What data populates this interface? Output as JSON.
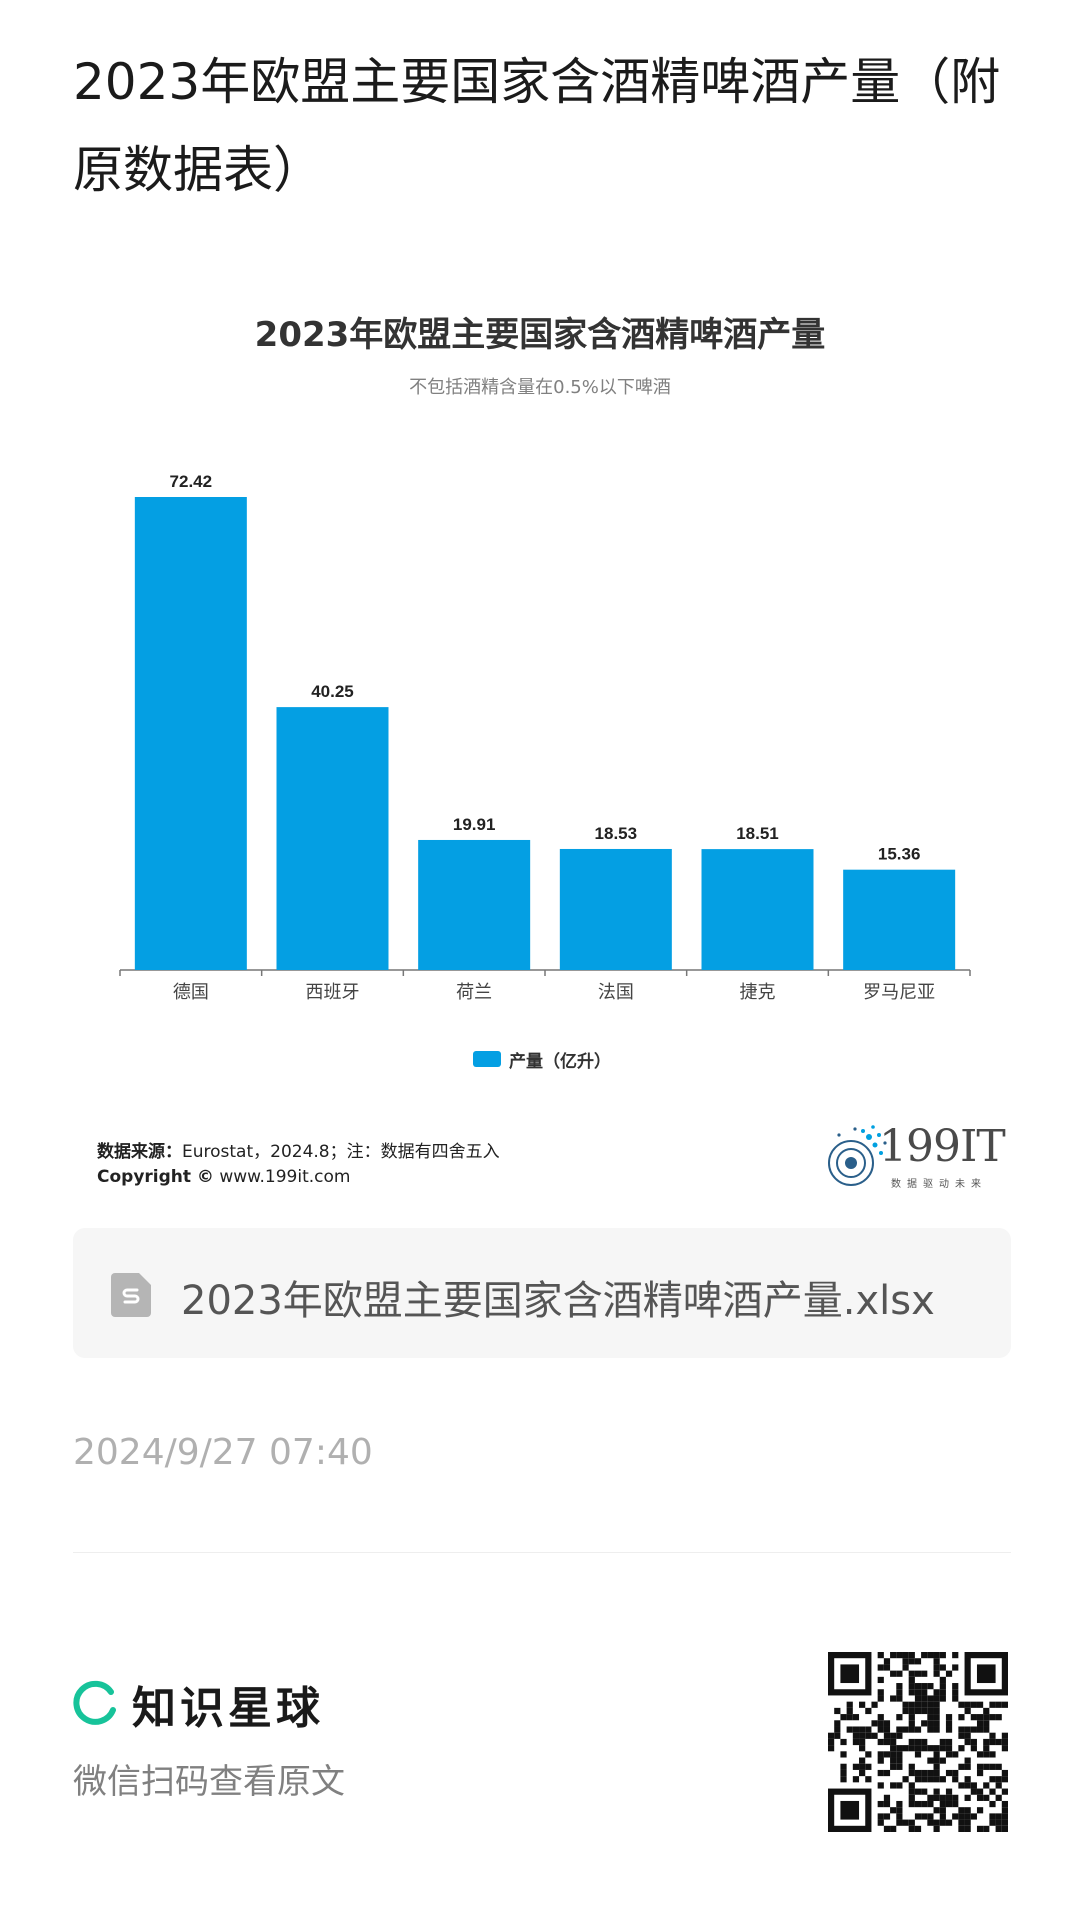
{
  "article": {
    "title": "2023年欧盟主要国家含酒精啤酒产量（附原数据表）",
    "attachment_name": "2023年欧盟主要国家含酒精啤酒产量.xlsx",
    "posted_at": "2024/9/27 07:40",
    "file_icon": "document-icon"
  },
  "chart_card": {
    "source_label": "数据来源：",
    "source_text": "Eurostat，2024.8；注：数据有四舍五入",
    "copyright_label": "Copyright ©",
    "copyright_text": "www.199it.com",
    "brand_name": "199IT",
    "brand_tagline": "数据驱动未来"
  },
  "chart_data": {
    "type": "bar",
    "title": "2023年欧盟主要国家含酒精啤酒产量",
    "subtitle": "不包括酒精含量在0.5%以下啤酒",
    "categories": [
      "德国",
      "西班牙",
      "荷兰",
      "法国",
      "捷克",
      "罗马尼亚"
    ],
    "series": [
      {
        "name": "产量（亿升）",
        "values": [
          72.42,
          40.25,
          19.91,
          18.53,
          18.51,
          15.36
        ]
      }
    ],
    "ylim": [
      0,
      72.42
    ],
    "grid": false,
    "legend": "bottom-center",
    "bar_color": "#049fe3"
  },
  "footer": {
    "app_name": "知识星球",
    "scan_hint": "微信扫码查看原文",
    "accent_color": "#17c39a"
  }
}
